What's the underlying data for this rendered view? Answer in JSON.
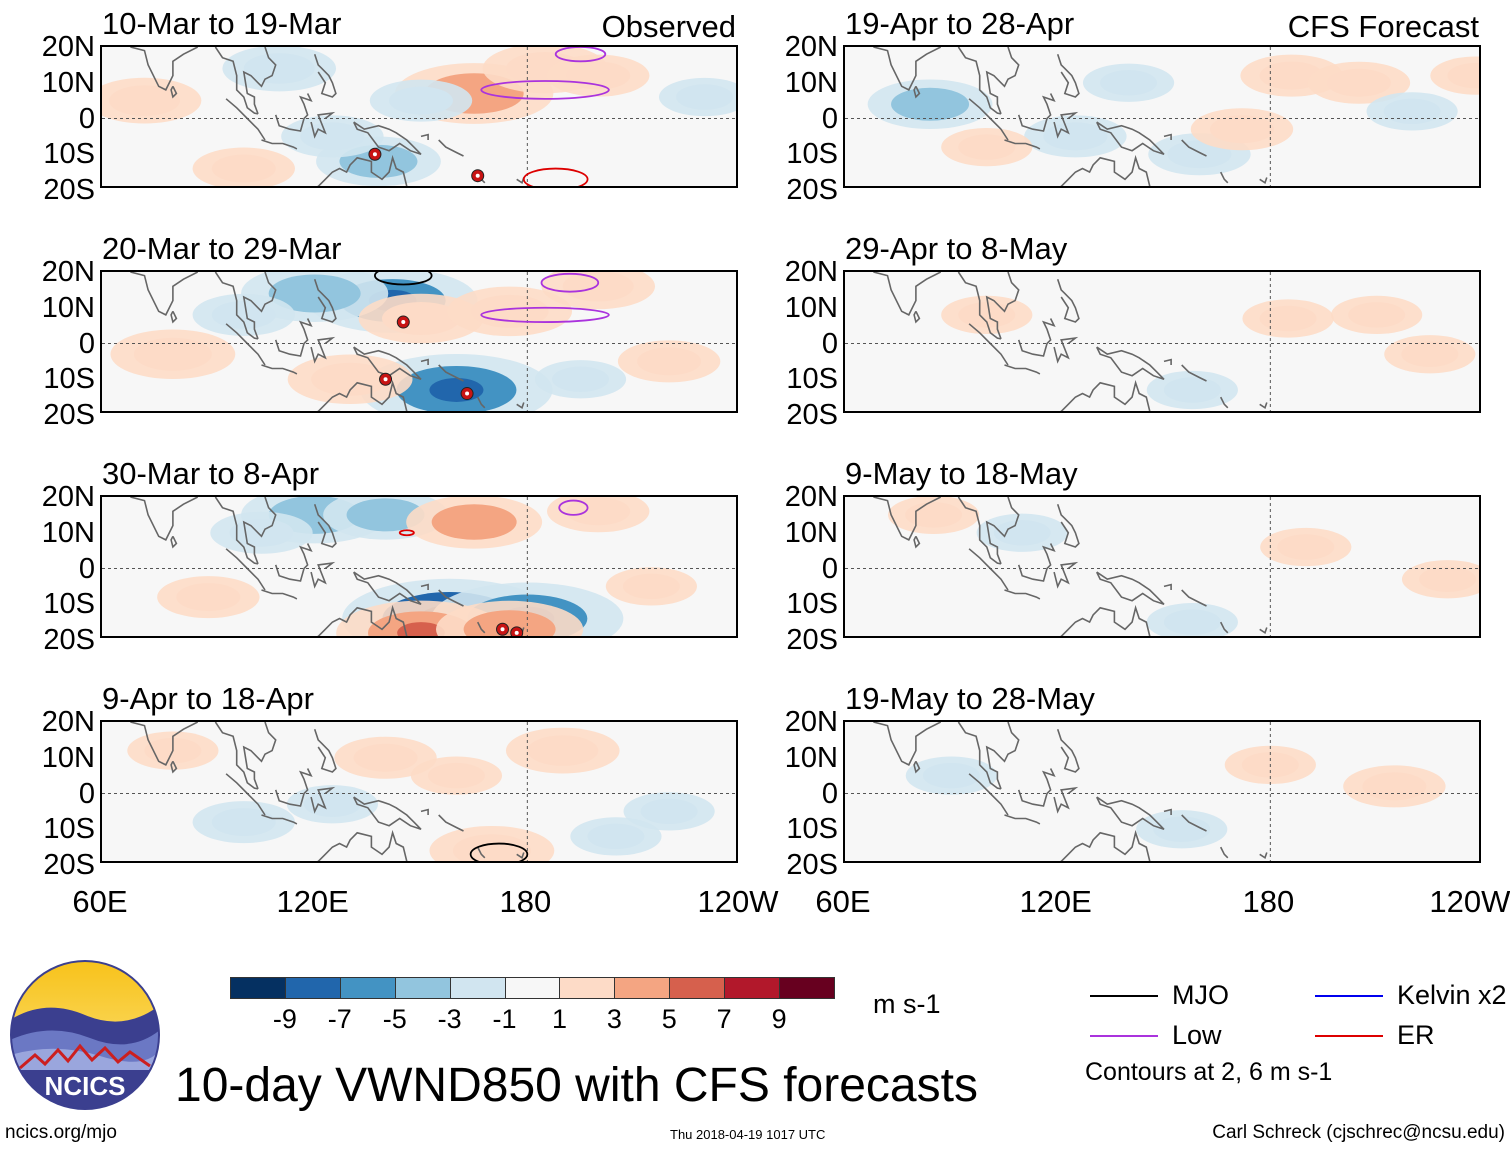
{
  "chart_data": {
    "type": "heatmap",
    "title": "10-day VWND850 with CFS forecasts",
    "variable": "VWND850",
    "units": "m s-1",
    "left_column_tag": "Observed",
    "right_column_tag": "CFS Forecast",
    "lat_ticks": [
      "20N",
      "10N",
      "0",
      "10S",
      "20S"
    ],
    "lon_ticks": [
      "60E",
      "120E",
      "180",
      "120W"
    ],
    "ylim": [
      -20,
      20
    ],
    "xlim": [
      60,
      240
    ],
    "panels": [
      {
        "title": "10-Mar to 19-Mar",
        "source": "observed",
        "col": 0,
        "row": 0,
        "anomalies": [
          [
            165,
            7,
            4.5
          ],
          [
            185,
            14,
            3
          ],
          [
            72,
            5,
            2.5
          ],
          [
            138,
            -12,
            -3
          ],
          [
            110,
            14,
            -2.5
          ],
          [
            200,
            12,
            2
          ],
          [
            150,
            5,
            -2
          ],
          [
            100,
            -14,
            2
          ],
          [
            230,
            6,
            -1.5
          ],
          [
            125,
            -5,
            -2
          ]
        ],
        "contours": [
          {
            "kind": "Low",
            "lon": 185,
            "lat": 8,
            "rx": 18,
            "ry": 2.5
          },
          {
            "kind": "Low",
            "lon": 195,
            "lat": 18,
            "rx": 7,
            "ry": 2
          },
          {
            "kind": "ER",
            "lon": 188,
            "lat": -17,
            "rx": 9,
            "ry": 3
          }
        ],
        "storms": [
          [
            137,
            -10
          ],
          [
            166,
            -16
          ]
        ]
      },
      {
        "title": "20-Mar to 29-Mar",
        "source": "observed",
        "col": 0,
        "row": 1,
        "anomalies": [
          [
            160,
            -13,
            -6
          ],
          [
            142,
            12,
            -5
          ],
          [
            120,
            14,
            -4
          ],
          [
            80,
            -3,
            3
          ],
          [
            150,
            7,
            3
          ],
          [
            175,
            9,
            3
          ],
          [
            200,
            16,
            2.5
          ],
          [
            130,
            -10,
            3
          ],
          [
            220,
            -5,
            2
          ],
          [
            100,
            8,
            -2
          ],
          [
            195,
            -10,
            -1.5
          ]
        ],
        "contours": [
          {
            "kind": "Low",
            "lon": 185,
            "lat": 8,
            "rx": 18,
            "ry": 2
          },
          {
            "kind": "Low",
            "lon": 192,
            "lat": 17,
            "rx": 8,
            "ry": 2.5
          },
          {
            "kind": "MJO",
            "lon": 145,
            "lat": 19,
            "rx": 8,
            "ry": 2.5
          }
        ],
        "storms": [
          [
            145,
            6
          ],
          [
            140,
            -10
          ],
          [
            163,
            -14
          ]
        ]
      },
      {
        "title": "30-Mar to 8-Apr",
        "source": "observed",
        "col": 0,
        "row": 2,
        "anomalies": [
          [
            158,
            -14,
            -7
          ],
          [
            180,
            -14,
            -6
          ],
          [
            120,
            15,
            -4
          ],
          [
            140,
            15,
            -3
          ],
          [
            165,
            13,
            3.5
          ],
          [
            150,
            -18,
            5
          ],
          [
            175,
            -17,
            4
          ],
          [
            200,
            16,
            2
          ],
          [
            90,
            -8,
            2
          ],
          [
            215,
            -5,
            1.5
          ],
          [
            105,
            10,
            -2
          ]
        ],
        "contours": [
          {
            "kind": "Low",
            "lon": 193,
            "lat": 17,
            "rx": 4,
            "ry": 2
          },
          {
            "kind": "ER",
            "lon": 146,
            "lat": 10,
            "rx": 2,
            "ry": 0.7
          }
        ],
        "storms": [
          [
            173,
            -17
          ],
          [
            177,
            -18
          ]
        ]
      },
      {
        "title": "9-Apr to 18-Apr",
        "source": "observed",
        "col": 0,
        "row": 3,
        "anomalies": [
          [
            190,
            12,
            2.5
          ],
          [
            170,
            -16,
            3
          ],
          [
            140,
            10,
            2
          ],
          [
            100,
            -8,
            -2
          ],
          [
            220,
            -5,
            -1.5
          ],
          [
            160,
            5,
            1.5
          ],
          [
            125,
            -3,
            -1.5
          ],
          [
            80,
            12,
            1.5
          ],
          [
            205,
            -12,
            -1.5
          ]
        ],
        "contours": [
          {
            "kind": "MJO",
            "lon": 172,
            "lat": -17,
            "rx": 8,
            "ry": 3
          }
        ],
        "storms": []
      },
      {
        "title": "19-Apr to 28-Apr",
        "source": "forecast",
        "col": 1,
        "row": 0,
        "anomalies": [
          [
            84,
            4,
            -3
          ],
          [
            125,
            -5,
            -2
          ],
          [
            160,
            -10,
            -2
          ],
          [
            172,
            -3,
            2
          ],
          [
            186,
            12,
            2
          ],
          [
            205,
            10,
            2
          ],
          [
            100,
            -8,
            1.5
          ],
          [
            220,
            2,
            -1.5
          ],
          [
            238,
            12,
            1.5
          ],
          [
            140,
            10,
            -1.5
          ]
        ],
        "contours": [],
        "storms": []
      },
      {
        "title": "29-Apr to 8-May",
        "source": "forecast",
        "col": 1,
        "row": 1,
        "anomalies": [
          [
            185,
            7,
            1.5
          ],
          [
            210,
            8,
            1.5
          ],
          [
            158,
            -13,
            -1.5
          ],
          [
            225,
            -3,
            1.5
          ],
          [
            100,
            8,
            1.5
          ]
        ],
        "contours": [],
        "storms": []
      },
      {
        "title": "9-May to 18-May",
        "source": "forecast",
        "col": 1,
        "row": 2,
        "anomalies": [
          [
            190,
            6,
            1.5
          ],
          [
            158,
            -15,
            -1.5
          ],
          [
            230,
            -3,
            1.5
          ],
          [
            85,
            15,
            1.5
          ],
          [
            110,
            10,
            -1.5
          ]
        ],
        "contours": [],
        "storms": []
      },
      {
        "title": "19-May to 28-May",
        "source": "forecast",
        "col": 1,
        "row": 3,
        "anomalies": [
          [
            215,
            2,
            2
          ],
          [
            155,
            -10,
            -1.5
          ],
          [
            90,
            5,
            -1.5
          ],
          [
            180,
            8,
            1.5
          ]
        ],
        "contours": [],
        "storms": []
      }
    ],
    "colorbar": {
      "colors": [
        "#053061",
        "#2166ac",
        "#4393c3",
        "#92c5de",
        "#d1e5f0",
        "#f7f7f7",
        "#fddbc7",
        "#f4a582",
        "#d6604d",
        "#b2182b",
        "#67001f"
      ],
      "tick_labels": [
        "-9",
        "-7",
        "-5",
        "-3",
        "-1",
        "1",
        "3",
        "5",
        "7",
        "9"
      ],
      "units_label": "m s-1"
    },
    "legend": [
      {
        "label": "MJO",
        "color": "#000000"
      },
      {
        "label": "Kelvin x2",
        "color": "#0000ee"
      },
      {
        "label": "Low",
        "color": "#aa33dd"
      },
      {
        "label": "ER",
        "color": "#dd0000"
      }
    ],
    "contour_note": "Contours at 2, 6 m s-1"
  },
  "footer": {
    "logo_text": "NCICS",
    "site": "ncics.org/mjo",
    "timestamp": "Thu 2018-04-19 1017 UTC",
    "credit": "Carl Schreck (cjschrec@ncsu.edu)"
  }
}
